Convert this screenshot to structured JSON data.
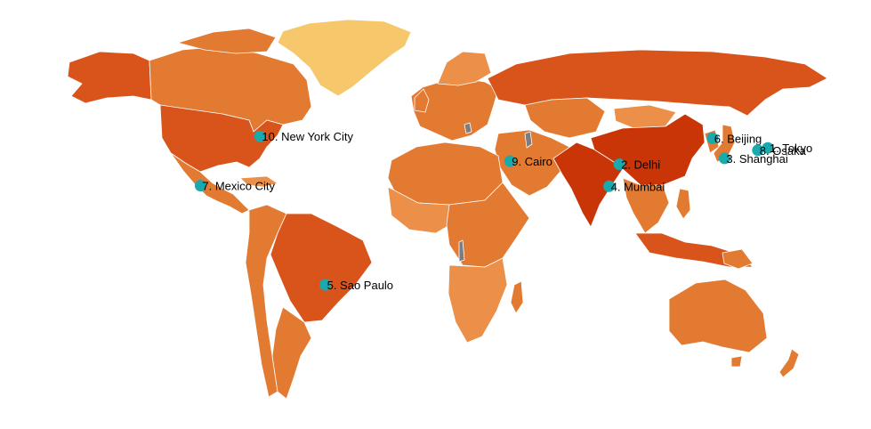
{
  "map": {
    "colors": {
      "greenland": "#f6c76b",
      "light": "#ec8f48",
      "medium": "#e37a32",
      "dark": "#d9541a",
      "darkest": "#c93507",
      "water_gray": "#7d7d80",
      "marker": "#1aa9ad"
    },
    "cities": [
      {
        "rank": 1,
        "label": "1. Tokyo",
        "lon": 139.7,
        "lat": 35.7
      },
      {
        "rank": 2,
        "label": "2. Delhi",
        "lon": 77.2,
        "lat": 28.6
      },
      {
        "rank": 3,
        "label": "3. Shanghai",
        "lon": 121.5,
        "lat": 31.2
      },
      {
        "rank": 4,
        "label": "4. Mumbai",
        "lon": 72.9,
        "lat": 19.1
      },
      {
        "rank": 5,
        "label": "5. Sao Paulo",
        "lon": -46.6,
        "lat": -23.5
      },
      {
        "rank": 6,
        "label": "6. Beijing",
        "lon": 116.4,
        "lat": 39.9
      },
      {
        "rank": 7,
        "label": "7. Mexico City",
        "lon": -99.1,
        "lat": 19.4
      },
      {
        "rank": 8,
        "label": "8. Osaka",
        "lon": 135.5,
        "lat": 34.7
      },
      {
        "rank": 9,
        "label": "9. Cairo",
        "lon": 31.2,
        "lat": 30.0
      },
      {
        "rank": 10,
        "label": "10. New York City",
        "lon": -74.0,
        "lat": 40.7
      }
    ]
  }
}
